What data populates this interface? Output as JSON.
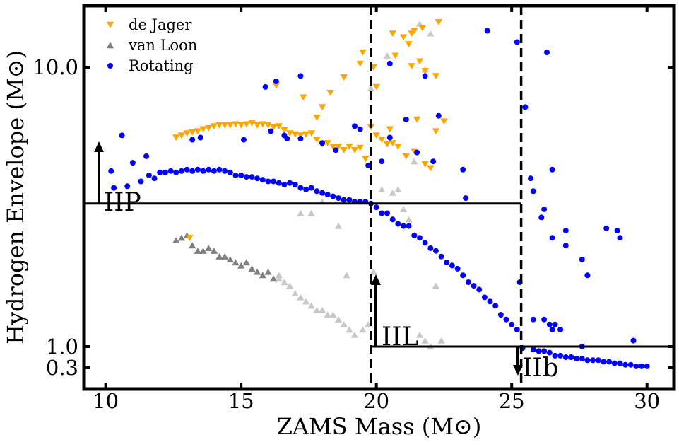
{
  "chart_data": {
    "type": "scatter",
    "xlabel": "ZAMS Mass (M⊙)",
    "ylabel": "Hydrogen Envelope (M⊙)",
    "xlim": [
      9.2,
      31.0
    ],
    "y_tick_labels": [
      "0.3",
      "1.0",
      "10.0"
    ],
    "x_tick_labels": [
      "10",
      "15",
      "20",
      "25",
      "30"
    ],
    "x_ticks": [
      10,
      15,
      20,
      25,
      30
    ],
    "y_ticks": [
      0.3,
      1.0,
      10.0
    ],
    "grid": false,
    "legend_position": "top-left",
    "region_labels": [
      "IIP",
      "IIL",
      "IIb"
    ],
    "thresholds": {
      "iip_envelope": 3.25,
      "iil_envelope": 1.0,
      "vertical_masses": [
        19.8,
        25.35
      ]
    },
    "series": [
      {
        "name": "de Jager",
        "marker": "triangle-down",
        "points": [
          [
            12.6,
            5.6
          ],
          [
            12.8,
            5.7
          ],
          [
            13.0,
            5.8
          ],
          [
            13.2,
            5.85
          ],
          [
            13.4,
            5.9
          ],
          [
            13.6,
            6.0
          ],
          [
            13.8,
            6.05
          ],
          [
            14.0,
            6.15
          ],
          [
            14.2,
            6.2
          ],
          [
            14.4,
            6.2
          ],
          [
            14.6,
            6.2
          ],
          [
            14.8,
            6.25
          ],
          [
            15.0,
            6.2
          ],
          [
            15.2,
            6.25
          ],
          [
            15.4,
            6.3
          ],
          [
            15.6,
            6.2
          ],
          [
            15.8,
            6.25
          ],
          [
            16.0,
            6.2
          ],
          [
            16.2,
            6.1
          ],
          [
            16.4,
            6.15
          ],
          [
            16.6,
            5.95
          ],
          [
            16.8,
            5.8
          ],
          [
            17.0,
            5.75
          ],
          [
            17.2,
            5.7
          ],
          [
            17.4,
            5.75
          ],
          [
            17.6,
            5.8
          ],
          [
            17.8,
            5.5
          ],
          [
            18.0,
            5.3
          ],
          [
            18.2,
            5.35
          ],
          [
            18.4,
            5.2
          ],
          [
            18.6,
            5.2
          ],
          [
            18.8,
            5.05
          ],
          [
            19.0,
            5.2
          ],
          [
            19.2,
            5.05
          ],
          [
            19.4,
            5.15
          ],
          [
            19.6,
            4.7
          ],
          [
            19.8,
            6.1
          ],
          [
            20.0,
            5.7
          ],
          [
            20.2,
            5.5
          ],
          [
            20.4,
            5.3
          ],
          [
            20.6,
            5.35
          ],
          [
            20.8,
            5.2
          ],
          [
            21.1,
            4.8
          ],
          [
            21.4,
            5.0
          ],
          [
            21.8,
            4.5
          ],
          [
            22.0,
            4.35
          ],
          [
            22.2,
            5.9
          ],
          [
            16.3,
            8.6
          ],
          [
            17.3,
            7.8
          ],
          [
            17.8,
            6.6
          ],
          [
            18.0,
            7.2
          ],
          [
            18.3,
            8.1
          ],
          [
            18.8,
            9.2
          ],
          [
            19.4,
            10.3
          ],
          [
            19.5,
            11.3
          ],
          [
            19.9,
            10.0
          ],
          [
            20.0,
            8.5
          ],
          [
            20.5,
            6.0
          ],
          [
            20.7,
            11.0
          ],
          [
            21.0,
            12.8
          ],
          [
            21.3,
            10.1
          ],
          [
            21.5,
            6.5
          ],
          [
            21.8,
            9.7
          ],
          [
            22.2,
            9.3
          ],
          [
            22.3,
            14.5
          ],
          [
            22.5,
            6.4
          ],
          [
            20.6,
            13.2
          ],
          [
            21.2,
            12.1
          ],
          [
            21.3,
            13.2
          ],
          [
            21.4,
            13.5
          ],
          [
            21.6,
            10.5
          ],
          [
            21.7,
            13.8
          ],
          [
            13.1,
            2.45
          ]
        ]
      },
      {
        "name": "van Loon",
        "marker": "triangle-up",
        "faded": false,
        "points": [
          [
            12.6,
            2.4
          ],
          [
            12.8,
            2.45
          ],
          [
            13.0,
            2.5
          ],
          [
            13.2,
            2.3
          ],
          [
            13.4,
            2.2
          ],
          [
            13.6,
            2.2
          ],
          [
            13.8,
            2.25
          ],
          [
            14.0,
            2.2
          ],
          [
            14.2,
            2.1
          ],
          [
            14.4,
            2.1
          ],
          [
            14.6,
            2.05
          ],
          [
            14.8,
            2.0
          ],
          [
            15.0,
            1.95
          ],
          [
            15.2,
            2.0
          ],
          [
            15.4,
            1.9
          ],
          [
            15.6,
            1.85
          ],
          [
            15.8,
            1.8
          ],
          [
            16.0,
            1.85
          ],
          [
            16.2,
            1.75
          ]
        ]
      },
      {
        "name": "van Loon (faded)",
        "marker": "triangle-up",
        "faded": true,
        "points": [
          [
            16.4,
            1.75
          ],
          [
            16.6,
            1.7
          ],
          [
            16.8,
            1.65
          ],
          [
            17.0,
            1.55
          ],
          [
            17.2,
            1.5
          ],
          [
            17.4,
            1.45
          ],
          [
            17.6,
            1.4
          ],
          [
            17.8,
            1.35
          ],
          [
            18.0,
            1.35
          ],
          [
            18.2,
            1.3
          ],
          [
            18.4,
            1.3
          ],
          [
            18.6,
            1.25
          ],
          [
            18.8,
            1.2
          ],
          [
            19.0,
            1.15
          ],
          [
            19.2,
            1.1
          ],
          [
            19.5,
            1.15
          ],
          [
            19.7,
            1.2
          ],
          [
            19.9,
            1.85
          ],
          [
            20.2,
            3.65
          ],
          [
            20.6,
            3.55
          ],
          [
            20.8,
            3.65
          ],
          [
            21.0,
            3.1
          ],
          [
            21.2,
            2.85
          ],
          [
            21.4,
            4.6
          ],
          [
            21.6,
            1.1
          ],
          [
            21.8,
            1.05
          ],
          [
            22.0,
            1.0
          ],
          [
            22.4,
            1.05
          ],
          [
            22.2,
            1.65
          ],
          [
            17.2,
            3.0
          ],
          [
            17.6,
            3.0
          ],
          [
            18.0,
            3.3
          ],
          [
            18.6,
            2.7
          ],
          [
            18.9,
            1.8
          ],
          [
            16.4,
            1.8
          ],
          [
            20.4,
            11.0
          ],
          [
            21.6,
            14.3
          ],
          [
            21.8,
            9.8
          ],
          [
            22.0,
            13.2
          ],
          [
            19.8,
            8.4
          ]
        ]
      },
      {
        "name": "Rotating",
        "marker": "circle",
        "points": [
          [
            10.2,
            4.25
          ],
          [
            10.3,
            3.7
          ],
          [
            10.8,
            3.75
          ],
          [
            11.0,
            4.55
          ],
          [
            11.3,
            3.9
          ],
          [
            11.5,
            4.8
          ],
          [
            11.6,
            4.1
          ],
          [
            11.8,
            4.0
          ],
          [
            12.0,
            4.2
          ],
          [
            12.2,
            4.2
          ],
          [
            12.4,
            4.25
          ],
          [
            12.6,
            4.2
          ],
          [
            12.8,
            4.25
          ],
          [
            13.0,
            4.3
          ],
          [
            13.2,
            4.25
          ],
          [
            13.4,
            4.3
          ],
          [
            13.6,
            4.25
          ],
          [
            13.8,
            4.3
          ],
          [
            14.0,
            4.25
          ],
          [
            14.2,
            4.3
          ],
          [
            14.4,
            4.25
          ],
          [
            14.6,
            4.2
          ],
          [
            14.8,
            4.1
          ],
          [
            15.0,
            4.1
          ],
          [
            15.2,
            4.05
          ],
          [
            15.4,
            4.05
          ],
          [
            15.6,
            4.0
          ],
          [
            15.8,
            3.95
          ],
          [
            16.0,
            3.9
          ],
          [
            16.2,
            3.9
          ],
          [
            16.4,
            3.85
          ],
          [
            16.6,
            3.8
          ],
          [
            16.8,
            3.85
          ],
          [
            17.0,
            3.8
          ],
          [
            17.2,
            3.7
          ],
          [
            17.4,
            3.65
          ],
          [
            17.6,
            3.7
          ],
          [
            17.8,
            3.6
          ],
          [
            18.0,
            3.55
          ],
          [
            18.2,
            3.5
          ],
          [
            18.4,
            3.45
          ],
          [
            18.6,
            3.4
          ],
          [
            18.8,
            3.35
          ],
          [
            19.0,
            3.35
          ],
          [
            19.2,
            3.3
          ],
          [
            19.4,
            3.3
          ],
          [
            19.6,
            3.3
          ],
          [
            19.8,
            3.25
          ],
          [
            20.0,
            3.15
          ],
          [
            20.2,
            3.0
          ],
          [
            20.4,
            3.0
          ],
          [
            20.6,
            2.85
          ],
          [
            20.8,
            2.75
          ],
          [
            21.0,
            2.7
          ],
          [
            21.2,
            2.7
          ],
          [
            21.4,
            2.5
          ],
          [
            21.6,
            2.45
          ],
          [
            21.8,
            2.35
          ],
          [
            22.0,
            2.25
          ],
          [
            22.2,
            2.2
          ],
          [
            22.4,
            2.1
          ],
          [
            22.6,
            2.0
          ],
          [
            22.8,
            1.95
          ],
          [
            23.0,
            1.9
          ],
          [
            23.2,
            1.8
          ],
          [
            23.4,
            1.7
          ],
          [
            23.6,
            1.65
          ],
          [
            23.8,
            1.6
          ],
          [
            24.0,
            1.5
          ],
          [
            24.2,
            1.45
          ],
          [
            24.4,
            1.4
          ],
          [
            24.6,
            1.3
          ],
          [
            24.8,
            1.25
          ],
          [
            25.0,
            1.2
          ],
          [
            25.2,
            1.15
          ],
          [
            25.4,
            0.95
          ],
          [
            25.8,
            0.9
          ],
          [
            26.0,
            0.85
          ],
          [
            26.2,
            0.85
          ],
          [
            26.4,
            0.8
          ],
          [
            26.6,
            0.7
          ],
          [
            26.8,
            0.7
          ],
          [
            27.0,
            0.65
          ],
          [
            27.2,
            0.65
          ],
          [
            27.4,
            0.6
          ],
          [
            27.6,
            0.6
          ],
          [
            27.8,
            0.55
          ],
          [
            28.0,
            0.55
          ],
          [
            28.2,
            0.55
          ],
          [
            28.4,
            0.5
          ],
          [
            28.6,
            0.5
          ],
          [
            28.8,
            0.45
          ],
          [
            29.0,
            0.45
          ],
          [
            29.2,
            0.4
          ],
          [
            29.4,
            0.4
          ],
          [
            29.6,
            0.35
          ],
          [
            29.8,
            0.35
          ],
          [
            30.0,
            0.35
          ],
          [
            10.6,
            5.7
          ],
          [
            13.2,
            5.5
          ],
          [
            13.5,
            5.6
          ],
          [
            15.1,
            5.5
          ],
          [
            16.1,
            5.9
          ],
          [
            16.6,
            5.7
          ],
          [
            16.7,
            5.55
          ],
          [
            17.2,
            5.55
          ],
          [
            18.0,
            5.35
          ],
          [
            18.5,
            5.05
          ],
          [
            19.2,
            6.15
          ],
          [
            19.4,
            6.0
          ],
          [
            19.7,
            4.45
          ],
          [
            20.2,
            4.6
          ],
          [
            20.5,
            5.6
          ],
          [
            21.1,
            6.5
          ],
          [
            21.5,
            4.95
          ],
          [
            22.1,
            4.6
          ],
          [
            22.3,
            6.7
          ],
          [
            23.2,
            4.3
          ],
          [
            23.3,
            3.4
          ],
          [
            21.8,
            9.3
          ],
          [
            15.9,
            8.5
          ],
          [
            16.3,
            8.9
          ],
          [
            17.2,
            9.3
          ],
          [
            20.5,
            10.3
          ],
          [
            24.1,
            13.5
          ],
          [
            25.2,
            12.3
          ],
          [
            25.5,
            7.2
          ],
          [
            26.3,
            11.3
          ],
          [
            26.5,
            4.3
          ],
          [
            25.7,
            4.0
          ],
          [
            25.8,
            3.6
          ],
          [
            26.1,
            2.9
          ],
          [
            26.2,
            3.1
          ],
          [
            26.5,
            2.45
          ],
          [
            27.0,
            2.6
          ],
          [
            27.0,
            2.3
          ],
          [
            27.6,
            2.05
          ],
          [
            27.8,
            1.8
          ],
          [
            28.5,
            2.65
          ],
          [
            28.9,
            2.6
          ],
          [
            29.0,
            2.45
          ],
          [
            29.5,
            1.05
          ],
          [
            25.3,
            1.7
          ],
          [
            26.2,
            1.25
          ],
          [
            25.8,
            1.25
          ],
          [
            26.4,
            1.2
          ],
          [
            26.5,
            1.15
          ],
          [
            26.6,
            1.2
          ],
          [
            26.8,
            1.15
          ],
          [
            27.6,
            1.0
          ]
        ]
      }
    ],
    "colors": {
      "de_jager": "#FFA500",
      "van_loon": "#808080",
      "van_loon_faded": "#C8C8C8",
      "rotating": "#0000FF"
    }
  }
}
